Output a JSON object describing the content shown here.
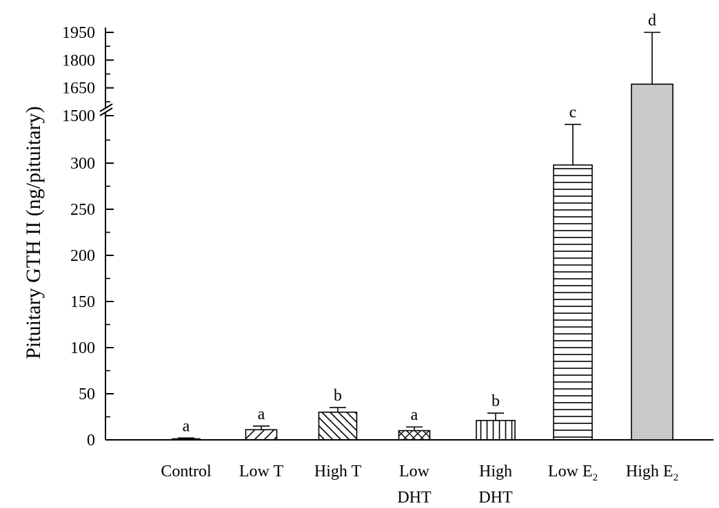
{
  "chart_data": {
    "type": "bar",
    "title": "",
    "xlabel": "",
    "ylabel": "Pituitary GTH II (ng/pituitary)",
    "y_axis_break": {
      "lower_range": [
        0,
        300
      ],
      "upper_range": [
        1500,
        1950
      ]
    },
    "lower_ticks": [
      0,
      50,
      100,
      150,
      200,
      250,
      300
    ],
    "upper_ticks": [
      1500,
      1650,
      1800,
      1950
    ],
    "grid": false,
    "legend": "none",
    "categories": [
      {
        "line1": "Control",
        "line2": "",
        "sub": ""
      },
      {
        "line1": "Low T",
        "line2": "",
        "sub": ""
      },
      {
        "line1": "High T",
        "line2": "",
        "sub": ""
      },
      {
        "line1": "Low",
        "line2": "DHT",
        "sub": ""
      },
      {
        "line1": "High",
        "line2": "DHT",
        "sub": ""
      },
      {
        "line1": "Low E",
        "line2": "",
        "sub": "2"
      },
      {
        "line1": "High E",
        "line2": "",
        "sub": "2"
      }
    ],
    "values": [
      1,
      11,
      30,
      10,
      21,
      298,
      1670
    ],
    "error_upper": [
      2,
      15,
      35,
      14,
      29,
      342,
      1950
    ],
    "significance": [
      "a",
      "a",
      "b",
      "a",
      "b",
      "c",
      "d"
    ],
    "patterns": [
      "none",
      "diagonal-forward",
      "diagonal-back",
      "crosshatch",
      "vertical",
      "horizontal",
      "stipple"
    ]
  }
}
